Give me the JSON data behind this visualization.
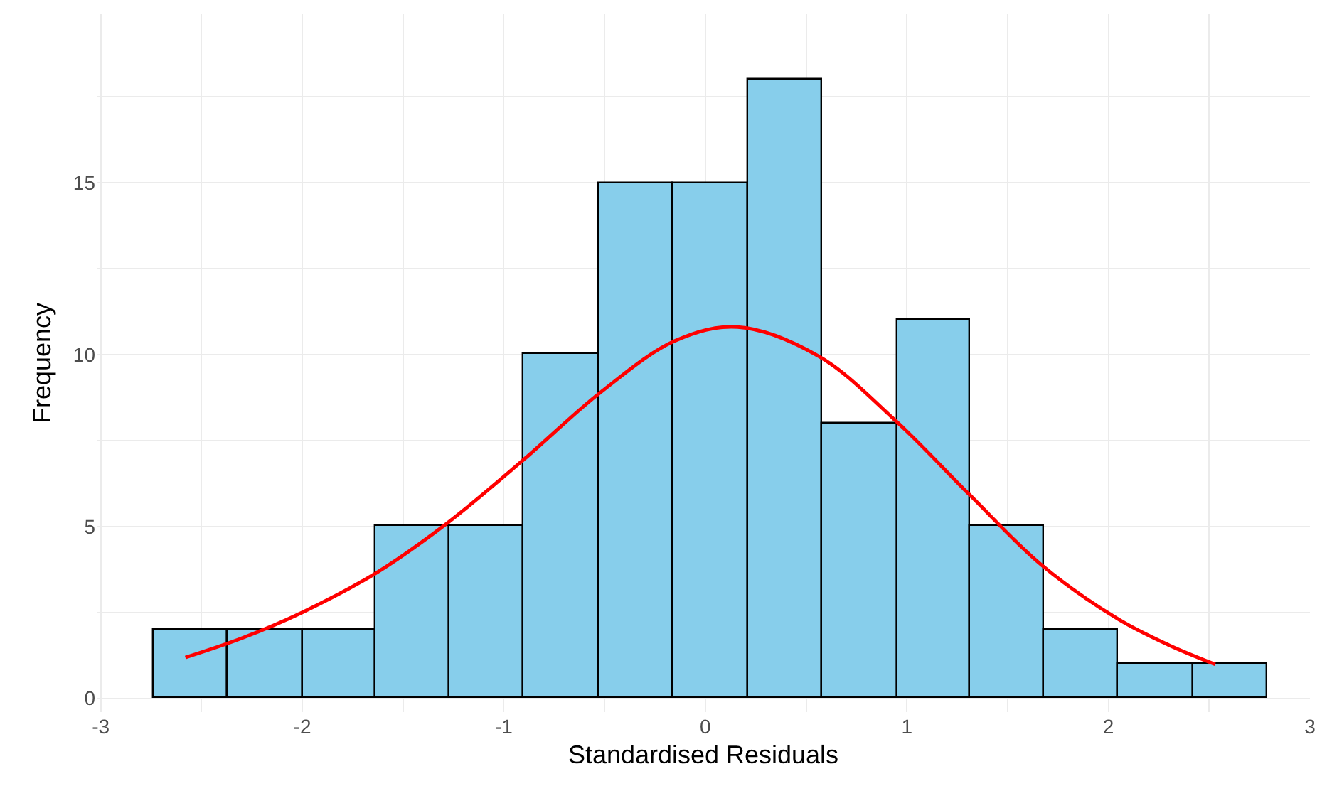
{
  "chart_data": {
    "type": "histogram",
    "xlabel": "Standardised Residuals",
    "ylabel": "Frequency",
    "bins": [
      -2.74,
      -2.37,
      -2.0,
      -1.64,
      -1.27,
      -0.9,
      -0.53,
      -0.16,
      0.21,
      0.58,
      0.95,
      1.31,
      1.68,
      2.05,
      2.42,
      2.79
    ],
    "values": [
      2,
      2,
      2,
      5,
      5,
      10,
      15,
      15,
      18,
      8,
      11,
      5,
      2,
      1,
      1
    ],
    "color": "#87ceeb",
    "series": [
      {
        "type": "line",
        "color": "#ff0000",
        "x": [
          -2.58,
          -2.3,
          -2.0,
          -1.63,
          -1.28,
          -0.9,
          -0.52,
          -0.15,
          0.16,
          0.56,
          0.94,
          1.31,
          1.67,
          2.05,
          2.3,
          2.53
        ],
        "values": [
          1.19,
          1.75,
          2.5,
          3.66,
          5.1,
          6.95,
          8.9,
          10.4,
          10.8,
          9.96,
          8.1,
          5.93,
          3.87,
          2.3,
          1.55,
          0.99
        ]
      }
    ],
    "xlim": [
      -3.02,
      3.0
    ],
    "ylim": [
      -0.4,
      19.9
    ],
    "xticks": [
      -3,
      {
        "value": -2.5,
        "label": null
      },
      -2,
      {
        "value": -1.5,
        "label": null
      },
      -1,
      {
        "value": -0.5,
        "label": null
      },
      0,
      {
        "value": 0.5,
        "label": null
      },
      1,
      {
        "value": 1.5,
        "label": null
      },
      2,
      {
        "value": 2.5,
        "label": null
      },
      3
    ],
    "yticks": [
      0,
      {
        "value": 2.5,
        "label": null
      },
      5,
      {
        "value": 7.5,
        "label": null
      },
      10,
      {
        "value": 12.5,
        "label": null
      },
      15,
      {
        "value": 17.5,
        "label": null
      }
    ],
    "grid": true
  }
}
